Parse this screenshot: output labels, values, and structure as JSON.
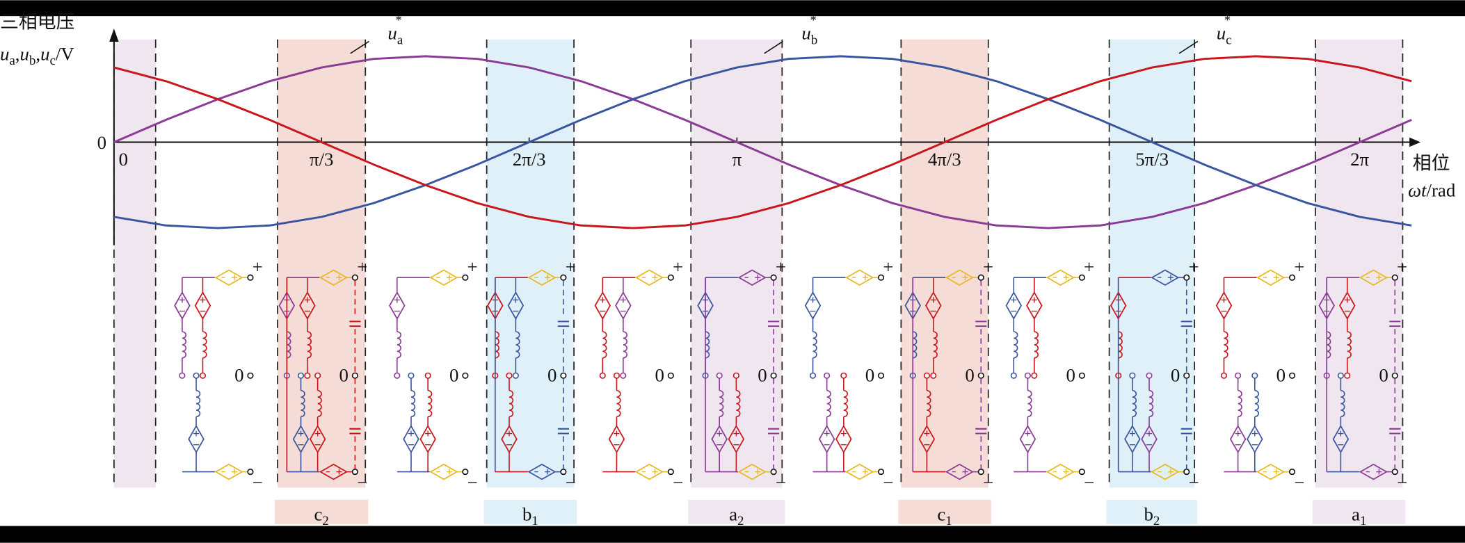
{
  "chart_data": {
    "type": "line",
    "y_label": {
      "line1": "三相电压",
      "line2": [
        {
          "text": "u",
          "italic": true,
          "sub": "a"
        },
        {
          "text": ","
        },
        {
          "text": "u",
          "italic": true,
          "sub": "b"
        },
        {
          "text": ","
        },
        {
          "text": "u",
          "italic": true,
          "sub": "c"
        },
        {
          "text": "/V"
        }
      ]
    },
    "x_label": {
      "line1": "相位",
      "line2": [
        {
          "text": "ωt",
          "italic": true
        },
        {
          "text": "/rad"
        }
      ]
    },
    "x": [
      0,
      0.262,
      0.524,
      0.785,
      1.047,
      1.309,
      1.571,
      1.833,
      2.094,
      2.356,
      2.618,
      2.88,
      3.142,
      3.403,
      3.665,
      3.927,
      4.189,
      4.451,
      4.712,
      4.974,
      5.236,
      5.498,
      5.76,
      6.021,
      6.283,
      6.545
    ],
    "series": [
      {
        "color": "#8b3a96",
        "values": [
          0,
          0.26,
          0.5,
          0.71,
          0.87,
          0.97,
          1,
          0.97,
          0.87,
          0.71,
          0.5,
          0.26,
          0,
          -0.26,
          -0.5,
          -0.71,
          -0.87,
          -0.97,
          -1,
          -0.97,
          -0.87,
          -0.71,
          -0.5,
          -0.26,
          0,
          0.26
        ]
      },
      {
        "color": "#3a55a0",
        "values": [
          -0.87,
          -0.97,
          -1,
          -0.97,
          -0.87,
          -0.71,
          -0.5,
          -0.26,
          0,
          0.26,
          0.5,
          0.71,
          0.87,
          0.97,
          1,
          0.97,
          0.87,
          0.71,
          0.5,
          0.26,
          0,
          -0.26,
          -0.5,
          -0.71,
          -0.87,
          -0.97
        ]
      },
      {
        "color": "#c8161d",
        "values": [
          0.87,
          0.71,
          0.5,
          0.26,
          0,
          -0.26,
          -0.5,
          -0.71,
          -0.87,
          -0.97,
          -1,
          -0.97,
          -0.87,
          -0.71,
          -0.5,
          -0.26,
          0,
          0.26,
          0.5,
          0.71,
          0.87,
          0.97,
          1,
          0.97,
          0.87,
          0.71
        ]
      }
    ],
    "annotations": [
      [
        {
          "text": "u",
          "italic": true,
          "sub": "a",
          "sup": "*"
        }
      ],
      [
        {
          "text": "u",
          "italic": true,
          "sub": "b",
          "sup": "*"
        }
      ],
      [
        {
          "text": "u",
          "italic": true,
          "sub": "c",
          "sup": "*"
        }
      ]
    ],
    "xlim": [
      0,
      6.6
    ],
    "ylim": [
      -1.2,
      1.3
    ],
    "xticks": [
      0,
      {
        "value": 1.047,
        "label": "π/3"
      },
      {
        "value": 2.094,
        "label": "2π/3"
      },
      {
        "value": 3.142,
        "label": "π"
      },
      {
        "value": 4.189,
        "label": "4π/3"
      },
      {
        "value": 5.236,
        "label": "5π/3"
      },
      {
        "value": 6.283,
        "label": "2π"
      }
    ],
    "yticks": [
      0
    ],
    "regions": [
      {
        "xlim": [
          0,
          0.21
        ],
        "color": "#efe6ef"
      },
      {
        "xlim": [
          0.825,
          1.268
        ],
        "color": "#f5dcd6",
        "label": [
          {
            "text": "c",
            "sub": "2"
          }
        ]
      },
      {
        "xlim": [
          1.88,
          2.32
        ],
        "color": "#dff0f8",
        "label": [
          {
            "text": "b",
            "sub": "1"
          }
        ]
      },
      {
        "xlim": [
          2.91,
          3.37
        ],
        "color": "#efe6ef",
        "label": [
          {
            "text": "a",
            "sub": "2"
          }
        ]
      },
      {
        "xlim": [
          3.97,
          4.41
        ],
        "color": "#f5dcd6",
        "label": [
          {
            "text": "c",
            "sub": "1"
          }
        ]
      },
      {
        "xlim": [
          5.02,
          5.45
        ],
        "color": "#dff0f8",
        "label": [
          {
            "text": "b",
            "sub": "2"
          }
        ]
      },
      {
        "xlim": [
          6.06,
          6.5
        ],
        "color": "#efe6ef",
        "label": [
          {
            "text": "a",
            "sub": "1"
          }
        ]
      }
    ],
    "terminals": {
      "plus": "+",
      "zero": "0",
      "minus": "−"
    }
  }
}
